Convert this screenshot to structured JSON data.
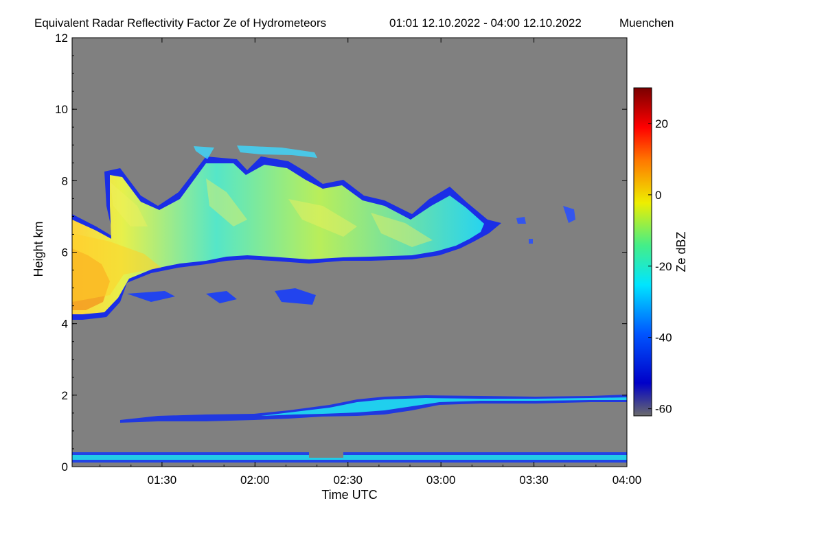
{
  "chart_data": {
    "type": "heatmap",
    "title": "Equivalent Radar Reflectivity Factor Ze of Hydrometeors",
    "period": "01:01 12.10.2022 - 04:00 12.10.2022",
    "location": "Muenchen",
    "xlabel": "Time UTC",
    "ylabel": "Height km",
    "xlim": [
      "01:01",
      "04:00"
    ],
    "ylim": [
      0,
      12
    ],
    "x_ticks": [
      "01:30",
      "02:00",
      "02:30",
      "03:00",
      "03:30",
      "04:00"
    ],
    "y_ticks": [
      "0",
      "2",
      "4",
      "6",
      "8",
      "10",
      "12"
    ],
    "colorbar": {
      "label": "Ze dBZ",
      "range": [
        -62,
        30
      ],
      "ticks": [
        "-60",
        "-40",
        "-20",
        "0",
        "20"
      ]
    },
    "colors": {
      "no_signal": "#808080",
      "scale_low": "#6b6b6b",
      "scale_mid": "#00e5ff",
      "scale_high": "#7a0000"
    },
    "features": [
      {
        "name": "cirrus-ice-cloud",
        "time_start": "01:01",
        "time_end": "03:45",
        "height_base_km": 4.1,
        "height_top_km": 9.0,
        "max_dBZ": 10
      },
      {
        "name": "low-cloud-layer",
        "time_start": "01:10",
        "time_end": "04:00",
        "height_base_km": 1.1,
        "height_top_km": 2.0,
        "max_dBZ": -20
      },
      {
        "name": "near-surface-clutter",
        "time_start": "01:01",
        "time_end": "04:00",
        "height_base_km": 0.0,
        "height_top_km": 0.25,
        "max_dBZ": -25
      }
    ]
  }
}
